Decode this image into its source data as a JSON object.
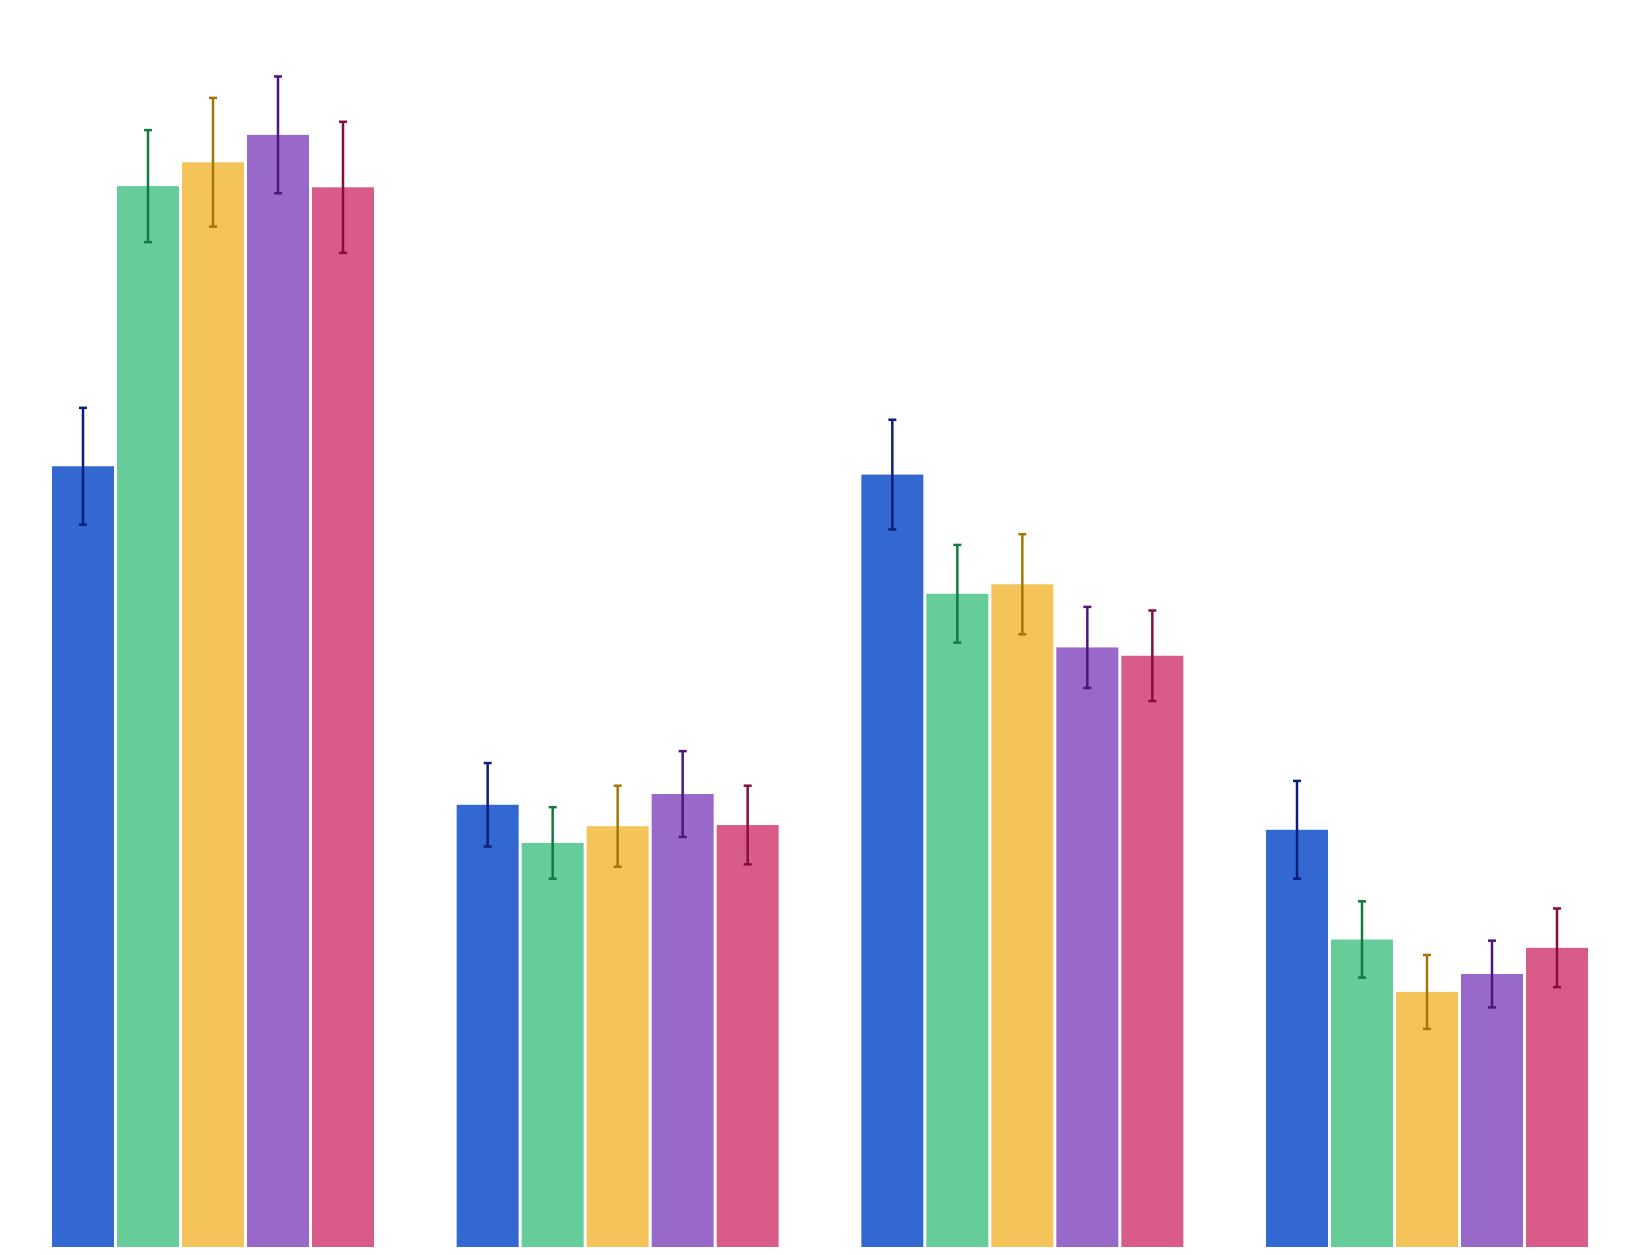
{
  "chart_data": {
    "type": "bar",
    "title": "",
    "xlabel": "",
    "ylabel": "",
    "grid": false,
    "legend": "none",
    "ylim": [
      0,
      100
    ],
    "categories": [
      "",
      "",
      "",
      ""
    ],
    "series": [
      {
        "color": "#3268cf",
        "error_color": "#0b1f7a",
        "values": [
          65.5,
          37.1,
          64.8,
          35.0
        ],
        "errors": [
          4.9,
          3.5,
          4.6,
          4.1
        ]
      },
      {
        "color": "#66cd9a",
        "error_color": "#147a42",
        "values": [
          89.0,
          33.9,
          54.8,
          25.8
        ],
        "errors": [
          4.7,
          3.0,
          4.1,
          3.2
        ]
      },
      {
        "color": "#f4c45b",
        "error_color": "#a3760a",
        "values": [
          91.0,
          35.3,
          55.6,
          21.4
        ],
        "errors": [
          5.4,
          3.4,
          4.2,
          3.1
        ]
      },
      {
        "color": "#9868cb",
        "error_color": "#4d167a",
        "values": [
          93.3,
          38.0,
          50.3,
          22.9
        ],
        "errors": [
          4.9,
          3.6,
          3.4,
          2.8
        ]
      },
      {
        "color": "#d95b89",
        "error_color": "#850d3f",
        "values": [
          88.9,
          35.4,
          49.6,
          25.1
        ],
        "errors": [
          5.5,
          3.3,
          3.8,
          3.3
        ]
      }
    ]
  }
}
